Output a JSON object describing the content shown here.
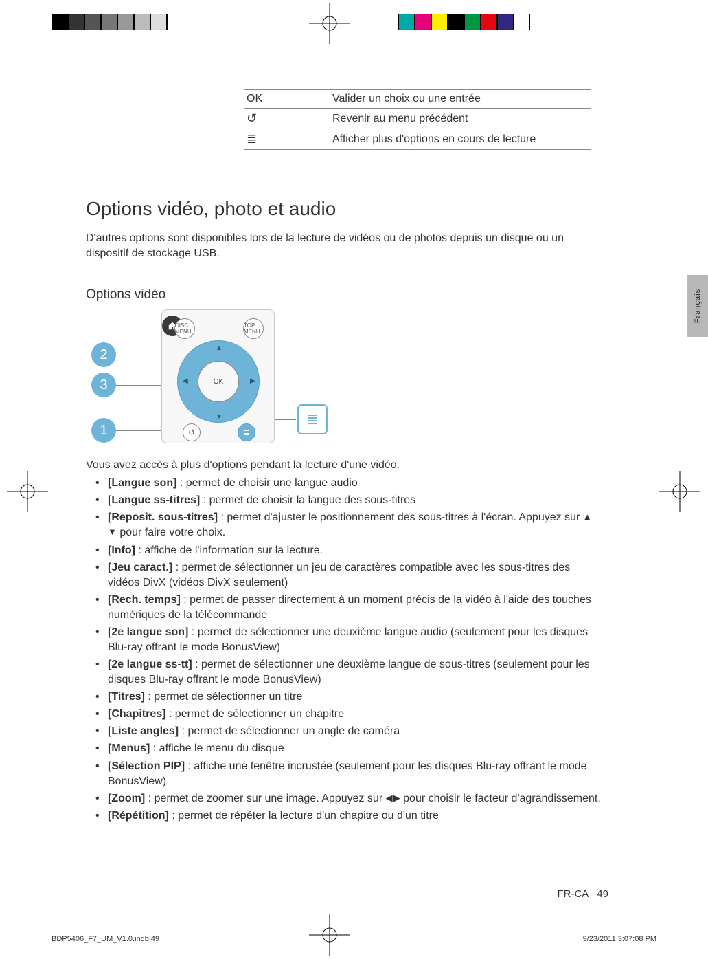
{
  "printer_marks": {
    "left_swatches": [
      "#000000",
      "#333333",
      "#555555",
      "#777777",
      "#999999",
      "#bbbbbb",
      "#dddddd",
      "#ffffff"
    ],
    "right_swatches": [
      "#00a8a8",
      "#e6007e",
      "#ffed00",
      "#000000",
      "#009640",
      "#e30613",
      "#312783",
      "#ffffff"
    ],
    "bordered": true
  },
  "kv_table": [
    {
      "key_text": "OK",
      "key_is_icon": false,
      "value": "Valider un choix ou une entrée"
    },
    {
      "key_text": "↺",
      "key_is_icon": true,
      "icon_name": "back-icon",
      "value": "Revenir au menu précédent"
    },
    {
      "key_text": "≣",
      "key_is_icon": true,
      "icon_name": "list-icon",
      "value": "Afficher plus d'options en cours de lecture"
    }
  ],
  "section_title": "Options vidéo, photo et audio",
  "intro": "D'autres options sont disponibles lors de la lecture de vidéos ou de photos depuis un disque ou un dispositif de stockage USB.",
  "subsection_title": "Options vidéo",
  "remote": {
    "disc_menu_label": "DISC MENU",
    "top_menu_label": "TOP MENU",
    "ok_label": "OK",
    "callouts": [
      "2",
      "3",
      "1"
    ],
    "accent_color": "#6db4d8"
  },
  "lead": "Vous avez accès à plus d'options pendant la lecture d'une vidéo.",
  "options": [
    {
      "label": "[Langue son]",
      "desc": " : permet de choisir une langue audio"
    },
    {
      "label": "[Langue ss-titres]",
      "desc": " : permet de choisir la langue des sous-titres"
    },
    {
      "label": "[Reposit. sous-titres]",
      "desc": " : permet d'ajuster le positionnement des sous-titres à l'écran. Appuyez sur ▲▼ pour faire votre choix."
    },
    {
      "label": "[Info]",
      "desc": " : affiche de l'information sur la lecture."
    },
    {
      "label": "[Jeu caract.]",
      "desc": " : permet de sélectionner un jeu de caractères compatible avec les sous-titres des vidéos DivX (vidéos DivX seulement)"
    },
    {
      "label": "[Rech. temps]",
      "desc": " : permet de passer directement à un moment précis de la vidéo à l'aide des touches numériques de la télécommande"
    },
    {
      "label": "[2e langue son]",
      "desc": " : permet de sélectionner une deuxième langue audio (seulement pour les disques Blu-ray offrant le mode BonusView)"
    },
    {
      "label": "[2e langue ss-tt]",
      "desc": " : permet de sélectionner une deuxième langue de sous-titres (seulement pour les disques Blu-ray offrant le mode BonusView)"
    },
    {
      "label": "[Titres]",
      "desc": " : permet de sélectionner un titre"
    },
    {
      "label": "[Chapitres]",
      "desc": " : permet de sélectionner un chapitre"
    },
    {
      "label": "[Liste angles]",
      "desc": " : permet de sélectionner un angle de caméra"
    },
    {
      "label": "[Menus]",
      "desc": " : affiche le menu du disque"
    },
    {
      "label": "[Sélection PIP]",
      "desc": " : affiche une fenêtre incrustée (seulement pour les disques Blu-ray offrant le mode BonusView)"
    },
    {
      "label": "[Zoom]",
      "desc": " : permet de zoomer sur une image. Appuyez sur ◀▶ pour choisir le facteur d'agrandissement."
    },
    {
      "label": "[Répétition]",
      "desc": " : permet de répéter la lecture d'un chapitre ou d'un titre"
    }
  ],
  "side_tab": "Français",
  "page_number_label": "FR-CA",
  "page_number": "49",
  "footer_left": "BDP5406_F7_UM_V1.0.indb   49",
  "footer_right": "9/23/2011   3:07:08 PM"
}
